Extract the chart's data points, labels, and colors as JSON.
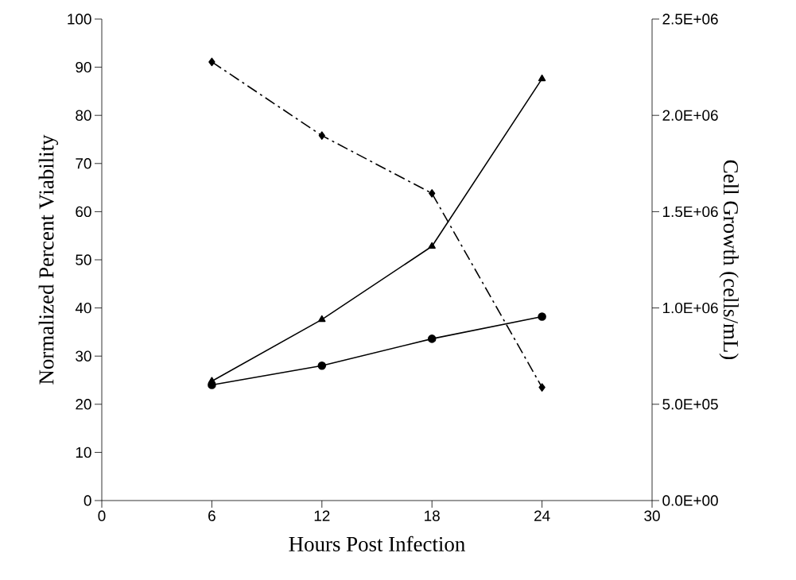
{
  "chart_data": {
    "type": "line",
    "xlabel": "Hours Post Infection",
    "ylabel": "Normalized Percent Viability",
    "y2label": "Cell Growth (cells/mL)",
    "x": [
      6,
      12,
      18,
      24
    ],
    "series": [
      {
        "color": "#000000",
        "marker": "diamond",
        "line_style": "dashdot",
        "values": [
          91.1,
          75.8,
          63.8,
          23.5
        ]
      },
      {
        "color": "#000000",
        "marker": "triangle",
        "line_style": "solid",
        "axis": "y2",
        "values": [
          620000,
          940000,
          1320000,
          2190000
        ]
      },
      {
        "color": "#000000",
        "marker": "circle",
        "line_style": "solid",
        "axis": "y2",
        "values": [
          600000,
          700000,
          840000,
          955000
        ]
      }
    ],
    "xlim": [
      0,
      30
    ],
    "xticks": [
      0,
      6,
      12,
      18,
      24,
      30
    ],
    "ylim": [
      0,
      100
    ],
    "yticks": [
      0,
      10,
      20,
      30,
      40,
      50,
      60,
      70,
      80,
      90,
      100
    ],
    "y2lim": [
      0,
      2500000
    ],
    "y2ticks": [
      {
        "value": 0,
        "label": "0.0E+00"
      },
      {
        "value": 500000,
        "label": "5.0E+05"
      },
      {
        "value": 1000000,
        "label": "1.0E+06"
      },
      {
        "value": 1500000,
        "label": "1.5E+06"
      },
      {
        "value": 2000000,
        "label": "2.0E+06"
      },
      {
        "value": 2500000,
        "label": "2.5E+06"
      }
    ],
    "grid": false
  }
}
